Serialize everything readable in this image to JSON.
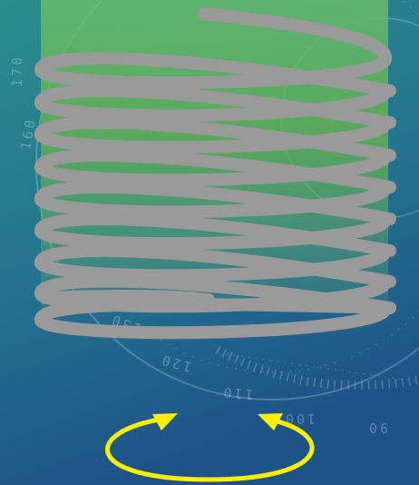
{
  "dial": {
    "labels": [
      "170",
      "160",
      "130",
      "120",
      "110",
      "100",
      "90"
    ]
  }
}
